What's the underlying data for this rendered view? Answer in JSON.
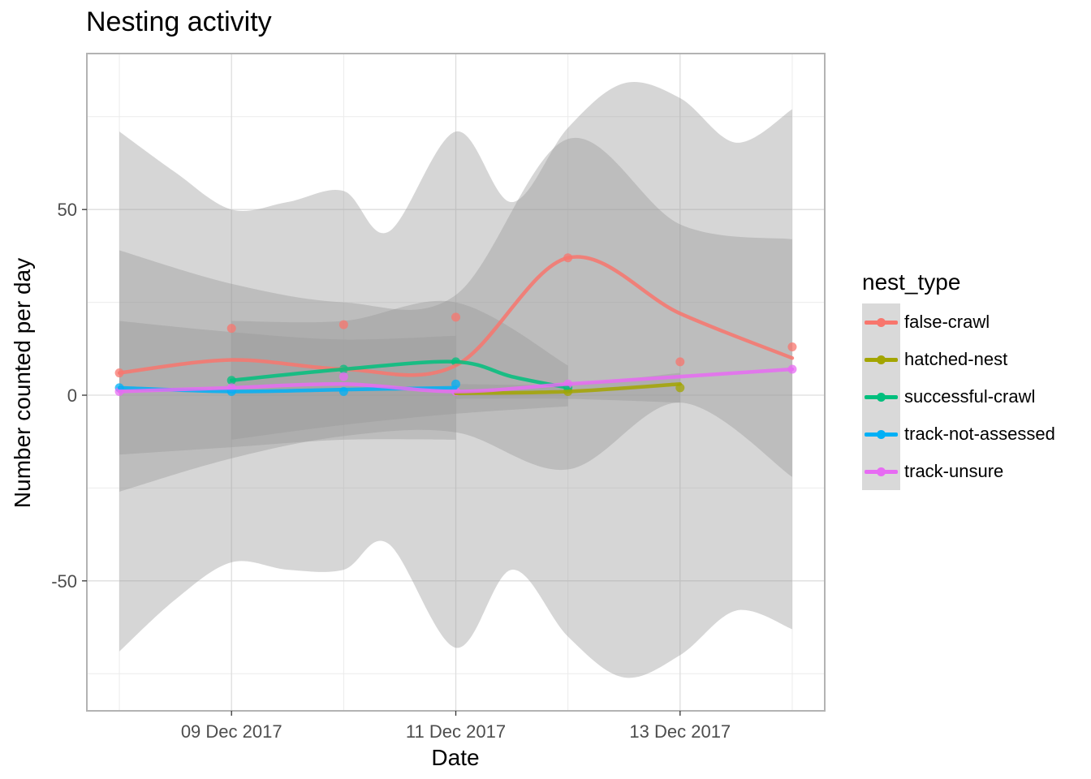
{
  "title": "Nesting activity",
  "chart_data": {
    "type": "line",
    "title": "Nesting activity",
    "xlabel": "Date",
    "ylabel": "Number counted per day",
    "x_ticks": [
      {
        "date": "2017-12-09",
        "label": "09 Dec 2017"
      },
      {
        "date": "2017-12-11",
        "label": "11 Dec 2017"
      },
      {
        "date": "2017-12-13",
        "label": "13 Dec 2017"
      }
    ],
    "y_ticks": [
      {
        "value": -50,
        "label": "-50"
      },
      {
        "value": 0,
        "label": "0"
      },
      {
        "value": 50,
        "label": "50"
      }
    ],
    "xlim": [
      "2017-12-07",
      "2017-12-14"
    ],
    "ylim": [
      -85,
      92
    ],
    "grid": true,
    "legend": {
      "title": "nest_type",
      "position": "right"
    },
    "series": [
      {
        "name": "false-crawl",
        "color": "#F8766D",
        "points": [
          {
            "x": "2017-12-08",
            "y": 6
          },
          {
            "x": "2017-12-09",
            "y": 18
          },
          {
            "x": "2017-12-10",
            "y": 19
          },
          {
            "x": "2017-12-11",
            "y": 21
          },
          {
            "x": "2017-12-12",
            "y": 37
          },
          {
            "x": "2017-12-13",
            "y": 9
          },
          {
            "x": "2017-12-14",
            "y": 13
          }
        ],
        "smooth": [
          {
            "x": "2017-12-08",
            "y": 6
          },
          {
            "x": "2017-12-09",
            "y": 9.5
          },
          {
            "x": "2017-12-10",
            "y": 7
          },
          {
            "x": "2017-12-11",
            "y": 8
          },
          {
            "x": "2017-12-12",
            "y": 37
          },
          {
            "x": "2017-12-13",
            "y": 22
          },
          {
            "x": "2017-12-14",
            "y": 10
          }
        ],
        "ribbon": [
          {
            "x": "2017-12-08",
            "lo": -69,
            "hi": 71
          },
          {
            "x": "2017-12-08.5",
            "lo": -55,
            "hi": 60
          },
          {
            "x": "2017-12-09",
            "lo": -45,
            "hi": 50
          },
          {
            "x": "2017-12-09.5",
            "lo": -47,
            "hi": 52
          },
          {
            "x": "2017-12-10",
            "lo": -47,
            "hi": 55
          },
          {
            "x": "2017-12-10.4",
            "lo": -40,
            "hi": 44
          },
          {
            "x": "2017-12-11",
            "lo": -68,
            "hi": 71
          },
          {
            "x": "2017-12-11.5",
            "lo": -47,
            "hi": 52
          },
          {
            "x": "2017-12-12",
            "lo": -65,
            "hi": 72
          },
          {
            "x": "2017-12-12.5",
            "lo": -76,
            "hi": 84
          },
          {
            "x": "2017-12-13",
            "lo": -70,
            "hi": 80
          },
          {
            "x": "2017-12-13.5",
            "lo": -58,
            "hi": 68
          },
          {
            "x": "2017-12-14",
            "lo": -63,
            "hi": 77
          }
        ]
      },
      {
        "name": "hatched-nest",
        "color": "#A3A500",
        "points": [
          {
            "x": "2017-12-12",
            "y": 1
          },
          {
            "x": "2017-12-13",
            "y": 2
          }
        ],
        "smooth": [
          {
            "x": "2017-12-11",
            "y": 0.5
          },
          {
            "x": "2017-12-12",
            "y": 1
          },
          {
            "x": "2017-12-13",
            "y": 3
          }
        ],
        "ribbon": [
          {
            "x": "2017-12-11",
            "lo": -1,
            "hi": 3
          },
          {
            "x": "2017-12-12",
            "lo": -1,
            "hi": 3
          },
          {
            "x": "2017-12-13",
            "lo": -2,
            "hi": 6
          }
        ]
      },
      {
        "name": "successful-crawl",
        "color": "#00BF7D",
        "points": [
          {
            "x": "2017-12-09",
            "y": 4
          },
          {
            "x": "2017-12-10",
            "y": 7
          },
          {
            "x": "2017-12-11",
            "y": 9
          },
          {
            "x": "2017-12-12",
            "y": 2
          }
        ],
        "smooth": [
          {
            "x": "2017-12-09",
            "y": 4
          },
          {
            "x": "2017-12-10",
            "y": 7
          },
          {
            "x": "2017-12-11",
            "y": 9
          },
          {
            "x": "2017-12-11.5",
            "y": 5
          },
          {
            "x": "2017-12-12",
            "y": 2
          }
        ],
        "ribbon": [
          {
            "x": "2017-12-09",
            "lo": -12,
            "hi": 20
          },
          {
            "x": "2017-12-10",
            "lo": -8,
            "hi": 20
          },
          {
            "x": "2017-12-11",
            "lo": -5,
            "hi": 25
          },
          {
            "x": "2017-12-12",
            "lo": -3,
            "hi": 8
          }
        ]
      },
      {
        "name": "track-not-assessed",
        "color": "#00B0F6",
        "points": [
          {
            "x": "2017-12-08",
            "y": 2
          },
          {
            "x": "2017-12-09",
            "y": 1
          },
          {
            "x": "2017-12-10",
            "y": 1
          },
          {
            "x": "2017-12-11",
            "y": 3
          }
        ],
        "smooth": [
          {
            "x": "2017-12-08",
            "y": 2
          },
          {
            "x": "2017-12-09",
            "y": 1
          },
          {
            "x": "2017-12-10",
            "y": 1.5
          },
          {
            "x": "2017-12-11",
            "y": 2
          }
        ],
        "ribbon": [
          {
            "x": "2017-12-08",
            "lo": -16,
            "hi": 20
          },
          {
            "x": "2017-12-09",
            "lo": -14,
            "hi": 17
          },
          {
            "x": "2017-12-10",
            "lo": -12,
            "hi": 15
          },
          {
            "x": "2017-12-11",
            "lo": -12,
            "hi": 16
          }
        ]
      },
      {
        "name": "track-unsure",
        "color": "#E76BF3",
        "points": [
          {
            "x": "2017-12-08",
            "y": 1
          },
          {
            "x": "2017-12-09",
            "y": 2
          },
          {
            "x": "2017-12-10",
            "y": 5
          },
          {
            "x": "2017-12-11",
            "y": 1
          },
          {
            "x": "2017-12-12",
            "y": 3
          },
          {
            "x": "2017-12-14",
            "y": 7
          }
        ],
        "smooth": [
          {
            "x": "2017-12-08",
            "y": 1
          },
          {
            "x": "2017-12-09",
            "y": 2
          },
          {
            "x": "2017-12-10",
            "y": 3
          },
          {
            "x": "2017-12-11",
            "y": 1
          },
          {
            "x": "2017-12-12",
            "y": 3
          },
          {
            "x": "2017-12-13",
            "y": 5
          },
          {
            "x": "2017-12-14",
            "y": 7
          }
        ],
        "ribbon": [
          {
            "x": "2017-12-08",
            "lo": -26,
            "hi": 39
          },
          {
            "x": "2017-12-09",
            "lo": -17,
            "hi": 30
          },
          {
            "x": "2017-12-10",
            "lo": -11,
            "hi": 25
          },
          {
            "x": "2017-12-11",
            "lo": -10,
            "hi": 27
          },
          {
            "x": "2017-12-12",
            "lo": -20,
            "hi": 69
          },
          {
            "x": "2017-12-13",
            "lo": -2,
            "hi": 46
          },
          {
            "x": "2017-12-14",
            "lo": -22,
            "hi": 42
          }
        ]
      }
    ]
  }
}
